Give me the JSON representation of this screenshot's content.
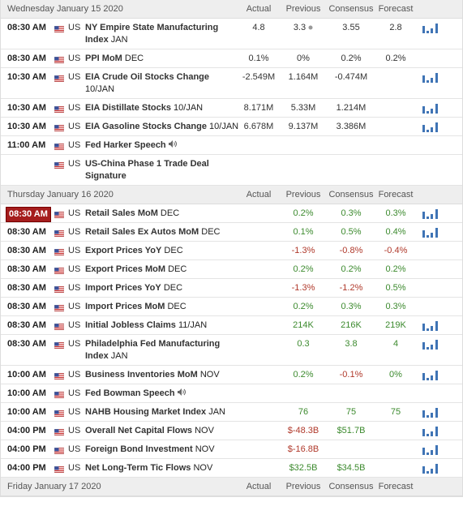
{
  "value_colors": {
    "positive": "#3c8a2e",
    "negative": "#b0392b"
  },
  "days": [
    {
      "date": "Wednesday January 15 2020",
      "columns": [
        "Actual",
        "Previous",
        "Consensus",
        "Forecast"
      ],
      "colored": false,
      "rows": [
        {
          "time": "08:30 AM",
          "country": "US",
          "event": "NY Empire State Manufacturing Index",
          "period": "JAN",
          "actual": "4.8",
          "previous": "3.3",
          "consensus": "3.55",
          "forecast": "2.8",
          "revised": true,
          "chart": true
        },
        {
          "time": "08:30 AM",
          "country": "US",
          "event": "PPI MoM",
          "period": "DEC",
          "actual": "0.1%",
          "previous": "0%",
          "consensus": "0.2%",
          "forecast": "0.2%"
        },
        {
          "time": "10:30 AM",
          "country": "US",
          "event": "EIA Crude Oil Stocks Change",
          "period": "10/JAN",
          "actual": "-2.549M",
          "previous": "1.164M",
          "consensus": "-0.474M",
          "chart": true
        },
        {
          "time": "10:30 AM",
          "country": "US",
          "event": "EIA Distillate Stocks",
          "period": "10/JAN",
          "actual": "8.171M",
          "previous": "5.33M",
          "consensus": "1.214M",
          "chart": true
        },
        {
          "time": "10:30 AM",
          "country": "US",
          "event": "EIA Gasoline Stocks Change",
          "period": "10/JAN",
          "actual": "6.678M",
          "previous": "9.137M",
          "consensus": "3.386M",
          "chart": true
        },
        {
          "time": "11:00 AM",
          "country": "US",
          "event": "Fed Harker Speech",
          "speech": true
        },
        {
          "country": "US",
          "event": "US-China Phase 1 Trade Deal Signature"
        }
      ]
    },
    {
      "date": "Thursday January 16 2020",
      "columns": [
        "Actual",
        "Previous",
        "Consensus",
        "Forecast"
      ],
      "colored": true,
      "rows": [
        {
          "time": "08:30 AM",
          "country": "US",
          "event": "Retail Sales MoM",
          "period": "DEC",
          "previous": "0.2%",
          "consensus": "0.3%",
          "forecast": "0.3%",
          "highlight": true,
          "chart": true
        },
        {
          "time": "08:30 AM",
          "country": "US",
          "event": "Retail Sales Ex Autos MoM",
          "period": "DEC",
          "previous": "0.1%",
          "consensus": "0.5%",
          "forecast": "0.4%",
          "chart": true
        },
        {
          "time": "08:30 AM",
          "country": "US",
          "event": "Export Prices YoY",
          "period": "DEC",
          "previous": "-1.3%",
          "consensus": "-0.8%",
          "forecast": "-0.4%"
        },
        {
          "time": "08:30 AM",
          "country": "US",
          "event": "Export Prices MoM",
          "period": "DEC",
          "previous": "0.2%",
          "consensus": "0.2%",
          "forecast": "0.2%"
        },
        {
          "time": "08:30 AM",
          "country": "US",
          "event": "Import Prices YoY",
          "period": "DEC",
          "previous": "-1.3%",
          "consensus": "-1.2%",
          "forecast": "0.5%"
        },
        {
          "time": "08:30 AM",
          "country": "US",
          "event": "Import Prices MoM",
          "period": "DEC",
          "previous": "0.2%",
          "consensus": "0.3%",
          "forecast": "0.3%"
        },
        {
          "time": "08:30 AM",
          "country": "US",
          "event": "Initial Jobless Claims",
          "period": "11/JAN",
          "previous": "214K",
          "consensus": "216K",
          "forecast": "219K",
          "chart": true
        },
        {
          "time": "08:30 AM",
          "country": "US",
          "event": "Philadelphia Fed Manufacturing Index",
          "period": "JAN",
          "previous": "0.3",
          "consensus": "3.8",
          "forecast": "4",
          "chart": true
        },
        {
          "time": "10:00 AM",
          "country": "US",
          "event": "Business Inventories MoM",
          "period": "NOV",
          "previous": "0.2%",
          "consensus": "-0.1%",
          "forecast": "0%",
          "chart": true
        },
        {
          "time": "10:00 AM",
          "country": "US",
          "event": "Fed Bowman Speech",
          "speech": true
        },
        {
          "time": "10:00 AM",
          "country": "US",
          "event": "NAHB Housing Market Index",
          "period": "JAN",
          "previous": "76",
          "consensus": "75",
          "forecast": "75",
          "chart": true
        },
        {
          "time": "04:00 PM",
          "country": "US",
          "event": "Overall Net Capital Flows",
          "period": "NOV",
          "previous": "$-48.3B",
          "consensus": "$51.7B",
          "chart": true
        },
        {
          "time": "04:00 PM",
          "country": "US",
          "event": "Foreign Bond Investment",
          "period": "NOV",
          "previous": "$-16.8B",
          "chart": true
        },
        {
          "time": "04:00 PM",
          "country": "US",
          "event": "Net Long-Term Tic Flows",
          "period": "NOV",
          "previous": "$32.5B",
          "consensus": "$34.5B",
          "chart": true
        }
      ]
    },
    {
      "date": "Friday January 17 2020",
      "columns": [
        "Actual",
        "Previous",
        "Consensus",
        "Forecast"
      ],
      "rows": []
    }
  ]
}
